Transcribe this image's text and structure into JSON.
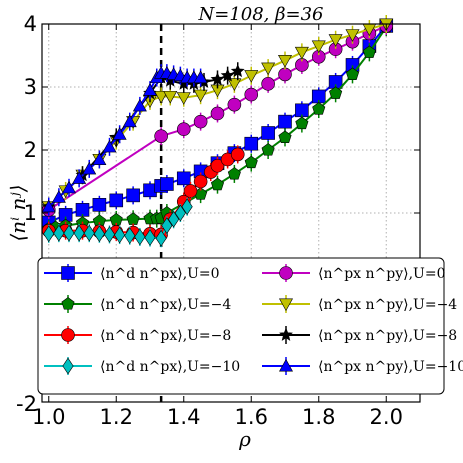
{
  "chart_data": {
    "type": "line",
    "title": "N=108, β=36",
    "xlabel": "ρ",
    "ylabel": "⟨nⁱ nʲ⟩",
    "xlim": [
      0.98,
      2.1
    ],
    "ylim": [
      -2,
      4
    ],
    "x_ticks": [
      "1.0",
      "1.2",
      "1.4",
      "1.6",
      "1.8",
      "2.0"
    ],
    "x_tick_values": [
      1.0,
      1.2,
      1.4,
      1.6,
      1.8,
      2.0
    ],
    "y_ticks": [
      "1",
      "2",
      "3",
      "4"
    ],
    "y_tick_values": [
      1,
      2,
      3,
      4
    ],
    "y_bottom_tick_label": "-2",
    "grid": true,
    "reference_line_x": 1.333,
    "legend_position": "lower-center",
    "series": [
      {
        "name": "⟨n^d n^px⟩,U=0",
        "color": "#0000ff",
        "marker": "square",
        "x": [
          1.0,
          1.05,
          1.1,
          1.15,
          1.2,
          1.25,
          1.3,
          1.333,
          1.35,
          1.4,
          1.45,
          1.5,
          1.55,
          1.6,
          1.65,
          1.7,
          1.75,
          1.8,
          1.85,
          1.9,
          1.95,
          2.0
        ],
        "y": [
          0.85,
          0.97,
          1.05,
          1.13,
          1.2,
          1.28,
          1.36,
          1.43,
          1.46,
          1.55,
          1.66,
          1.79,
          1.95,
          2.1,
          2.27,
          2.45,
          2.63,
          2.85,
          3.08,
          3.35,
          3.65,
          3.97
        ]
      },
      {
        "name": "⟨n^d n^px⟩,U=−4",
        "color": "#008000",
        "marker": "pentagon",
        "x": [
          1.0,
          1.02,
          1.05,
          1.1,
          1.15,
          1.2,
          1.25,
          1.3,
          1.32,
          1.333,
          1.35,
          1.4,
          1.45,
          1.5,
          1.55,
          1.6,
          1.65,
          1.7,
          1.75,
          1.8,
          1.85,
          1.9,
          1.95,
          2.0
        ],
        "y": [
          0.75,
          0.77,
          0.8,
          0.84,
          0.87,
          0.89,
          0.9,
          0.91,
          0.91,
          0.92,
          1.0,
          1.15,
          1.3,
          1.45,
          1.62,
          1.8,
          2.0,
          2.2,
          2.42,
          2.65,
          2.9,
          3.2,
          3.55,
          3.95
        ]
      },
      {
        "name": "⟨n^d n^px⟩,U=−8",
        "color": "#ff0000",
        "marker": "circle",
        "x": [
          1.0,
          1.05,
          1.1,
          1.15,
          1.2,
          1.25,
          1.3,
          1.333,
          1.36,
          1.4,
          1.42,
          1.45,
          1.48,
          1.5,
          1.53,
          1.56
        ],
        "y": [
          0.72,
          0.72,
          0.72,
          0.71,
          0.7,
          0.69,
          0.67,
          0.66,
          0.9,
          1.18,
          1.35,
          1.5,
          1.65,
          1.75,
          1.85,
          1.93
        ]
      },
      {
        "name": "⟨n^d n^px⟩,U=−10",
        "color": "#00c0c0",
        "marker": "diamond",
        "x": [
          1.0,
          1.03,
          1.06,
          1.09,
          1.12,
          1.15,
          1.18,
          1.21,
          1.24,
          1.27,
          1.3,
          1.333,
          1.35,
          1.37,
          1.39,
          1.41
        ],
        "y": [
          0.67,
          0.68,
          0.68,
          0.68,
          0.68,
          0.67,
          0.66,
          0.65,
          0.64,
          0.62,
          0.61,
          0.6,
          0.8,
          0.9,
          1.0,
          1.1
        ]
      },
      {
        "name": "⟨n^px n^py⟩,U=0",
        "color": "#c000c0",
        "marker": "circle",
        "x": [
          1.0,
          1.333,
          1.4,
          1.45,
          1.5,
          1.55,
          1.6,
          1.65,
          1.7,
          1.75,
          1.8,
          1.85,
          1.9,
          1.95,
          2.0
        ],
        "y": [
          1.05,
          2.22,
          2.33,
          2.45,
          2.58,
          2.72,
          2.88,
          3.05,
          3.2,
          3.35,
          3.48,
          3.6,
          3.72,
          3.85,
          3.97
        ]
      },
      {
        "name": "⟨n^px n^py⟩,U=−4",
        "color": "#c0c000",
        "marker": "triangle-down",
        "x": [
          1.0,
          1.05,
          1.1,
          1.15,
          1.2,
          1.25,
          1.3,
          1.333,
          1.36,
          1.4,
          1.45,
          1.5,
          1.55,
          1.6,
          1.65,
          1.7,
          1.75,
          1.8,
          1.85,
          1.9,
          1.95,
          2.0
        ],
        "y": [
          1.1,
          1.35,
          1.6,
          1.85,
          2.15,
          2.45,
          2.78,
          2.85,
          2.85,
          2.83,
          2.87,
          2.95,
          3.05,
          3.18,
          3.3,
          3.42,
          3.55,
          3.65,
          3.75,
          3.83,
          3.92,
          4.0
        ]
      },
      {
        "name": "⟨n^px n^py⟩,U=−8",
        "color": "#000000",
        "marker": "star",
        "x": [
          1.0,
          1.1,
          1.2,
          1.3,
          1.333,
          1.36,
          1.4,
          1.43,
          1.46,
          1.5,
          1.53,
          1.56
        ],
        "y": [
          1.1,
          1.6,
          2.2,
          2.9,
          3.15,
          3.1,
          3.05,
          3.05,
          3.08,
          3.12,
          3.18,
          3.25
        ]
      },
      {
        "name": "⟨n^px n^py⟩,U=−10",
        "color": "#0000ff",
        "marker": "triangle-up",
        "x": [
          1.0,
          1.03,
          1.06,
          1.09,
          1.12,
          1.15,
          1.18,
          1.21,
          1.24,
          1.27,
          1.3,
          1.32,
          1.333,
          1.35,
          1.37,
          1.39,
          1.41,
          1.43,
          1.45
        ],
        "y": [
          1.1,
          1.25,
          1.4,
          1.55,
          1.7,
          1.85,
          2.05,
          2.25,
          2.45,
          2.7,
          2.95,
          3.15,
          3.22,
          3.22,
          3.2,
          3.18,
          3.15,
          3.15,
          3.15
        ]
      }
    ]
  }
}
